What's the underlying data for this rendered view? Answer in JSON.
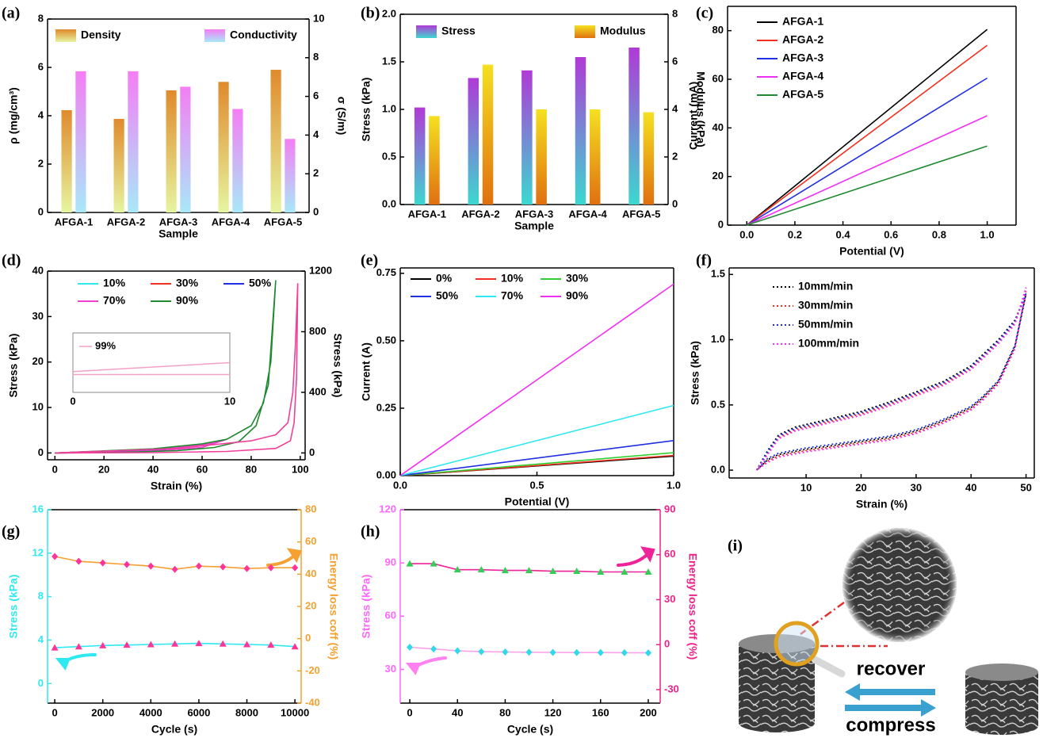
{
  "chart_data": [
    {
      "label": "(a)",
      "type": "bar",
      "xlabel": "Sample",
      "ylabel": "ρ (mg/cm³)",
      "y2label": "σ (S/m)",
      "categories": [
        "AFGA-1",
        "AFGA-2",
        "AFGA-3",
        "AFGA-4",
        "AFGA-5"
      ],
      "series": [
        {
          "name": "Density",
          "color": "#e08a2c",
          "color_bottom": "#e6f5a0",
          "values": [
            4.23,
            3.87,
            5.05,
            5.4,
            5.9
          ]
        },
        {
          "name": "Conductivity",
          "color": "#f47ef4",
          "color_bottom": "#a8e8f8",
          "axis": "y2",
          "values": [
            7.3,
            7.3,
            6.5,
            5.35,
            3.8
          ]
        }
      ],
      "ylim": [
        0,
        8
      ],
      "yticks": [
        0,
        2,
        4,
        6,
        8
      ],
      "y2lim": [
        0,
        10
      ],
      "y2ticks": [
        0,
        2,
        4,
        6,
        8,
        10
      ],
      "legend_columns": 2
    },
    {
      "label": "(b)",
      "type": "bar",
      "xlabel": "Sample",
      "ylabel": "Stress (kPa)",
      "y2label": "Modulus (kPa)",
      "categories": [
        "AFGA-1",
        "AFGA-2",
        "AFGA-3",
        "AFGA-4",
        "AFGA-5"
      ],
      "series": [
        {
          "name": "Stress",
          "color": "#b03ad6",
          "color_bottom": "#3cd8d0",
          "values": [
            1.02,
            1.33,
            1.41,
            1.55,
            1.65
          ]
        },
        {
          "name": "Modulus",
          "color": "#f5e020",
          "color_bottom": "#e07010",
          "axis": "y2",
          "values": [
            3.72,
            5.88,
            4.0,
            4.0,
            3.88
          ]
        }
      ],
      "ylim": [
        0,
        2
      ],
      "yticks": [
        {
          "value": 0,
          "label": "0.0"
        },
        {
          "value": 0.5,
          "label": "0.5"
        },
        {
          "value": 1,
          "label": "1.0"
        },
        {
          "value": 1.5,
          "label": "1.5"
        },
        {
          "value": 2,
          "label": "2.0"
        }
      ],
      "y2lim": [
        0,
        8
      ],
      "y2ticks": [
        0,
        2,
        4,
        6,
        8
      ],
      "legend_columns": 2
    },
    {
      "label": "(c)",
      "type": "line",
      "xlabel": "Potential (V)",
      "ylabel": "Current (mA)",
      "xlim": [
        -0.08,
        1.12
      ],
      "xticks": [
        {
          "value": 0,
          "label": "0.0"
        },
        {
          "value": 0.2,
          "label": "0.2"
        },
        {
          "value": 0.4,
          "label": "0.4"
        },
        {
          "value": 0.6,
          "label": "0.6"
        },
        {
          "value": 0.8,
          "label": "0.8"
        },
        {
          "value": 1,
          "label": "1.0"
        }
      ],
      "ylim": [
        0,
        90
      ],
      "yticks": [
        0,
        20,
        40,
        60,
        80
      ],
      "legend_columns": 1,
      "series": [
        {
          "name": "AFGA-1",
          "color": "#000000",
          "x": [
            0,
            1
          ],
          "values": [
            0,
            80.5
          ]
        },
        {
          "name": "AFGA-2",
          "color": "#f03020",
          "x": [
            0,
            1
          ],
          "values": [
            0,
            74
          ]
        },
        {
          "name": "AFGA-3",
          "color": "#2030e0",
          "x": [
            0,
            1
          ],
          "values": [
            0,
            60.5
          ]
        },
        {
          "name": "AFGA-4",
          "color": "#f030f0",
          "x": [
            0,
            1
          ],
          "values": [
            0,
            45
          ]
        },
        {
          "name": "AFGA-5",
          "color": "#208a30",
          "x": [
            0,
            1
          ],
          "values": [
            0,
            32.5
          ]
        }
      ]
    },
    {
      "label": "(d)",
      "type": "line",
      "xlabel": "Strain (%)",
      "ylabel": "Stress (kPa)",
      "y2label": "Stress (kPa)",
      "xlim": [
        -3,
        102
      ],
      "xticks": [
        0,
        20,
        40,
        60,
        80,
        100
      ],
      "ylim": [
        -1.5,
        40
      ],
      "yticks": [
        0,
        10,
        20,
        30,
        40
      ],
      "y2lim": [
        -45,
        1200
      ],
      "y2ticks": [
        0,
        400,
        800,
        1200
      ],
      "legend_columns": 3,
      "series": [
        {
          "name": "10%",
          "color": "#30e8f0",
          "x": [
            0,
            5,
            10,
            5,
            0
          ],
          "values": [
            0,
            0.05,
            0.1,
            0.05,
            0
          ]
        },
        {
          "name": "30%",
          "color": "#f03020",
          "x": [
            0,
            15,
            30,
            15,
            0
          ],
          "values": [
            0,
            0.2,
            0.35,
            0.1,
            0
          ]
        },
        {
          "name": "50%",
          "color": "#2030e0",
          "x": [
            0,
            25,
            45,
            50,
            40,
            20,
            0
          ],
          "values": [
            0,
            0.4,
            0.8,
            1.1,
            0.5,
            0.15,
            0
          ]
        },
        {
          "name": "70%",
          "color": "#f040d0",
          "x": [
            0,
            30,
            50,
            60,
            65,
            70,
            60,
            45,
            25,
            0
          ],
          "values": [
            0,
            0.6,
            1.2,
            1.8,
            2.2,
            3,
            1.2,
            0.6,
            0.2,
            0
          ]
        },
        {
          "name": "90%",
          "color": "#208a30",
          "x": [
            0,
            40,
            60,
            70,
            80,
            85,
            88,
            90,
            87,
            82,
            75,
            65,
            50,
            25,
            0
          ],
          "values": [
            0,
            0.9,
            2,
            3,
            6,
            11,
            20,
            38,
            15,
            6,
            2.5,
            1.2,
            0.5,
            0.1,
            0
          ]
        },
        {
          "color": "#f0409a",
          "axis": "y2",
          "x": [
            0,
            50,
            80,
            90,
            95,
            97,
            98,
            99,
            98.5,
            97.5,
            96,
            90,
            70,
            40,
            0
          ],
          "values": [
            0,
            30,
            80,
            120,
            200,
            400,
            700,
            1120,
            500,
            200,
            80,
            30,
            10,
            2,
            0
          ]
        }
      ],
      "inset": {
        "xlim": [
          0,
          10
        ],
        "xticks": [
          0,
          10
        ],
        "ylim": [
          0,
          1
        ],
        "series": [
          {
            "name": "99%",
            "color": "#f4a0c8",
            "x": [
              0,
              10
            ],
            "values": [
              0.35,
              0.5
            ]
          },
          {
            "color": "#f4a0c8",
            "x": [
              0,
              10
            ],
            "values": [
              0.3,
              0.3
            ]
          }
        ]
      }
    },
    {
      "label": "(e)",
      "type": "line",
      "xlabel": "Potential (V)",
      "ylabel": "Current (A)",
      "xlim": [
        0,
        1
      ],
      "xticks": [
        {
          "value": 0,
          "label": "0.0"
        },
        {
          "value": 0.5,
          "label": "0.5"
        },
        {
          "value": 1,
          "label": "1.0"
        }
      ],
      "ylim": [
        0,
        0.77
      ],
      "yticks": [
        {
          "value": 0,
          "label": "0.00"
        },
        {
          "value": 0.25,
          "label": "0.25"
        },
        {
          "value": 0.5,
          "label": "0.50"
        },
        {
          "value": 0.75,
          "label": "0.75"
        }
      ],
      "legend_columns": 3,
      "series": [
        {
          "name": "0%",
          "color": "#000000",
          "x": [
            0,
            1
          ],
          "values": [
            0,
            0.072
          ]
        },
        {
          "name": "10%",
          "color": "#f03020",
          "x": [
            0,
            1
          ],
          "values": [
            0,
            0.075
          ]
        },
        {
          "name": "30%",
          "color": "#30d030",
          "x": [
            0,
            1
          ],
          "values": [
            0,
            0.085
          ]
        },
        {
          "name": "50%",
          "color": "#2030e0",
          "x": [
            0,
            1
          ],
          "values": [
            0,
            0.13
          ]
        },
        {
          "name": "70%",
          "color": "#30e8f0",
          "x": [
            0,
            1
          ],
          "values": [
            0,
            0.26
          ]
        },
        {
          "name": "90%",
          "color": "#f030f0",
          "x": [
            0,
            1
          ],
          "values": [
            0,
            0.71
          ]
        }
      ]
    },
    {
      "label": "(f)",
      "type": "line",
      "xlabel": "Strain (%)",
      "ylabel": "Stress (kPa)",
      "line_style": "dotted",
      "xlim": [
        -4,
        51.5
      ],
      "xticks": [
        10,
        20,
        30,
        40,
        50
      ],
      "ylim": [
        -0.06,
        1.55
      ],
      "yticks": [
        {
          "value": 0,
          "label": "0.0"
        },
        {
          "value": 0.5,
          "label": "0.5"
        },
        {
          "value": 1,
          "label": "1.0"
        },
        {
          "value": 1.5,
          "label": "1.5"
        }
      ],
      "legend_columns": 1,
      "x": [
        1,
        3,
        5,
        8,
        10,
        15,
        20,
        25,
        30,
        35,
        40,
        45,
        48,
        50,
        50,
        48,
        45,
        42,
        40,
        35,
        30,
        25,
        20,
        15,
        10,
        5,
        3,
        1
      ],
      "series": [
        {
          "name": "10mm/min",
          "color": "#000000",
          "values": [
            0,
            0.15,
            0.27,
            0.33,
            0.35,
            0.4,
            0.45,
            0.52,
            0.6,
            0.68,
            0.8,
            1.0,
            1.15,
            1.35,
            1.35,
            0.95,
            0.68,
            0.55,
            0.48,
            0.38,
            0.3,
            0.25,
            0.22,
            0.19,
            0.16,
            0.12,
            0.08,
            0
          ]
        },
        {
          "name": "30mm/min",
          "color": "#f03020",
          "values": [
            0,
            0.13,
            0.25,
            0.31,
            0.33,
            0.38,
            0.43,
            0.5,
            0.58,
            0.66,
            0.78,
            0.98,
            1.13,
            1.37,
            1.37,
            0.94,
            0.67,
            0.54,
            0.47,
            0.37,
            0.29,
            0.24,
            0.21,
            0.18,
            0.15,
            0.11,
            0.07,
            0
          ]
        },
        {
          "name": "50mm/min",
          "color": "#2030e0",
          "values": [
            0,
            0.14,
            0.26,
            0.32,
            0.34,
            0.39,
            0.44,
            0.51,
            0.59,
            0.67,
            0.79,
            0.99,
            1.14,
            1.36,
            1.36,
            0.96,
            0.69,
            0.56,
            0.49,
            0.39,
            0.31,
            0.26,
            0.23,
            0.2,
            0.17,
            0.13,
            0.09,
            0
          ]
        },
        {
          "name": "100mm/min",
          "color": "#f030f0",
          "values": [
            0,
            0.12,
            0.24,
            0.3,
            0.32,
            0.37,
            0.42,
            0.49,
            0.57,
            0.65,
            0.77,
            0.97,
            1.12,
            1.4,
            1.4,
            0.93,
            0.66,
            0.53,
            0.46,
            0.36,
            0.28,
            0.23,
            0.2,
            0.17,
            0.14,
            0.1,
            0.06,
            0
          ]
        }
      ]
    },
    {
      "label": "(g)",
      "type": "line",
      "xlabel": "Cycle (s)",
      "ylabel": "Stress (kPa)",
      "y2label": "Energy loss coff (%)",
      "axis_color": "#30e8f0",
      "y2_axis_color": "#f5a030",
      "xlim": [
        -300,
        10260
      ],
      "xticks": [
        0,
        2000,
        4000,
        6000,
        8000,
        10000
      ],
      "ylim": [
        -1.8,
        16
      ],
      "yticks": [
        0,
        4,
        8,
        12,
        16
      ],
      "y2lim": [
        -40,
        80
      ],
      "y2ticks": [
        -40,
        -20,
        0,
        20,
        40,
        60,
        80
      ],
      "series": [
        {
          "color": "#30e8f0",
          "marker": "triangle",
          "marker_color": "#ff3399",
          "x": [
            0,
            1000,
            2000,
            3000,
            4000,
            5000,
            6000,
            7000,
            8000,
            9000,
            10000
          ],
          "values": [
            3.3,
            3.4,
            3.5,
            3.55,
            3.6,
            3.65,
            3.7,
            3.65,
            3.6,
            3.55,
            3.4
          ]
        },
        {
          "color": "#f5a030",
          "axis": "y2",
          "marker": "diamond",
          "marker_color": "#ff3399",
          "x": [
            0,
            1000,
            2000,
            3000,
            4000,
            5000,
            6000,
            7000,
            8000,
            9000,
            10000
          ],
          "values": [
            51,
            48,
            47,
            46,
            45,
            43,
            45,
            44.5,
            43.5,
            44,
            44
          ]
        }
      ]
    },
    {
      "label": "(h)",
      "type": "line",
      "xlabel": "Cycle (s)",
      "ylabel": "Stress (kPa)",
      "y2label": "Energy loss coff (%)",
      "axis_color": "#ff66ff",
      "y2_axis_color": "#ee2288",
      "xlim": [
        -8,
        210
      ],
      "xticks": [
        0,
        40,
        80,
        120,
        160,
        200
      ],
      "ylim": [
        11,
        120
      ],
      "yticks": [
        30,
        60,
        90,
        120
      ],
      "y2lim": [
        -39,
        90
      ],
      "y2ticks": [
        -30,
        0,
        30,
        60,
        90
      ],
      "series": [
        {
          "color": "#ffa0e8",
          "marker": "diamond",
          "marker_color": "#30d8e8",
          "x": [
            0,
            20,
            40,
            60,
            80,
            100,
            120,
            140,
            160,
            180,
            200
          ],
          "values": [
            42.5,
            41.5,
            40.5,
            40,
            39.8,
            39.7,
            39.6,
            39.5,
            39.5,
            39.4,
            39.3
          ]
        },
        {
          "color": "#ee2299",
          "axis": "y2",
          "marker": "triangle",
          "marker_color": "#33cc55",
          "x": [
            0,
            20,
            40,
            60,
            80,
            100,
            120,
            140,
            160,
            180,
            200
          ],
          "values": [
            54,
            54,
            50,
            50,
            49.5,
            49.5,
            49,
            49,
            48.5,
            48.5,
            48.5
          ]
        }
      ]
    }
  ],
  "diagram": {
    "label": "(i)",
    "arrows": [
      "recover",
      "compress"
    ]
  }
}
